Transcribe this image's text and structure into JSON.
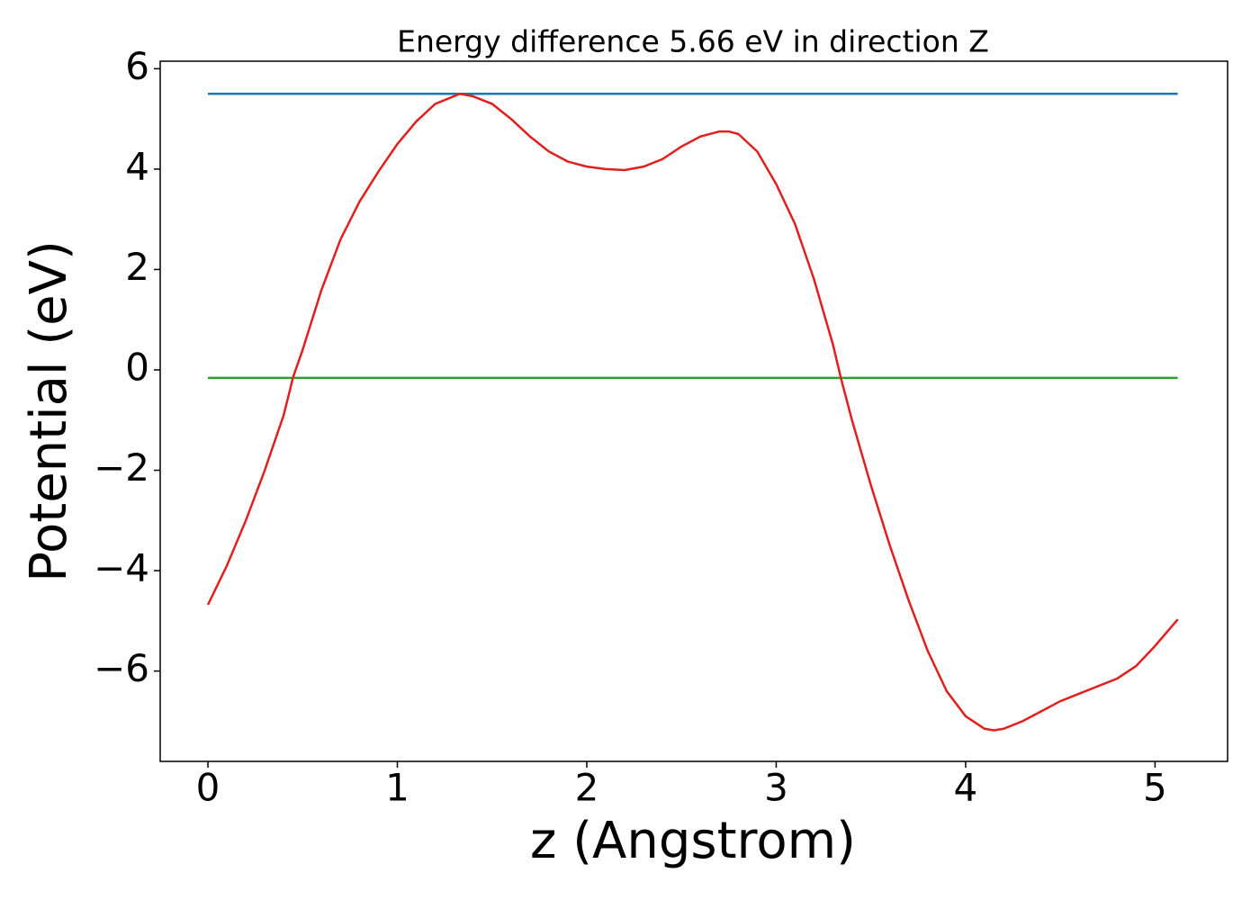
{
  "chart_data": {
    "type": "line",
    "title": "Energy difference 5.66 eV in direction Z",
    "xlabel": "z (Angstrom)",
    "ylabel": "Potential (eV)",
    "xlim": [
      -0.252,
      5.383
    ],
    "ylim": [
      -7.8,
      6.15
    ],
    "xticks": [
      0,
      1,
      2,
      3,
      4,
      5
    ],
    "yticks": [
      {
        "value": -6,
        "label": "−6"
      },
      {
        "value": -4,
        "label": "−4"
      },
      {
        "value": -2,
        "label": "−2"
      },
      0,
      2,
      4,
      6
    ],
    "grid": false,
    "series": [
      {
        "color": "#1f77b4",
        "x": [
          0,
          5.12
        ],
        "values": [
          5.5,
          5.5
        ]
      },
      {
        "color": "#2ca02c",
        "x": [
          0,
          5.12
        ],
        "values": [
          -0.16,
          -0.16
        ]
      },
      {
        "color": "#e0201e",
        "x": [
          0,
          0.1,
          0.2,
          0.3,
          0.4,
          0.45,
          0.5,
          0.6,
          0.7,
          0.8,
          0.9,
          1.0,
          1.1,
          1.2,
          1.33,
          1.4,
          1.5,
          1.6,
          1.7,
          1.8,
          1.9,
          2.0,
          2.1,
          2.2,
          2.3,
          2.4,
          2.5,
          2.6,
          2.7,
          2.75,
          2.8,
          2.9,
          3.0,
          3.1,
          3.2,
          3.3,
          3.34,
          3.4,
          3.5,
          3.6,
          3.7,
          3.8,
          3.9,
          4.0,
          4.1,
          4.15,
          4.2,
          4.3,
          4.4,
          4.5,
          4.6,
          4.7,
          4.8,
          4.9,
          5.0,
          5.12
        ],
        "values": [
          -4.68,
          -3.9,
          -3.0,
          -2.0,
          -0.9,
          -0.14,
          0.4,
          1.6,
          2.6,
          3.35,
          3.95,
          4.5,
          4.95,
          5.3,
          5.5,
          5.45,
          5.3,
          5.0,
          4.65,
          4.35,
          4.15,
          4.05,
          4.0,
          3.98,
          4.05,
          4.2,
          4.45,
          4.65,
          4.75,
          4.75,
          4.7,
          4.35,
          3.7,
          2.9,
          1.8,
          0.5,
          -0.14,
          -1.0,
          -2.3,
          -3.5,
          -4.6,
          -5.6,
          -6.4,
          -6.9,
          -7.15,
          -7.18,
          -7.15,
          -7.0,
          -6.8,
          -6.6,
          -6.45,
          -6.3,
          -6.15,
          -5.9,
          -5.5,
          -4.97
        ]
      }
    ]
  }
}
